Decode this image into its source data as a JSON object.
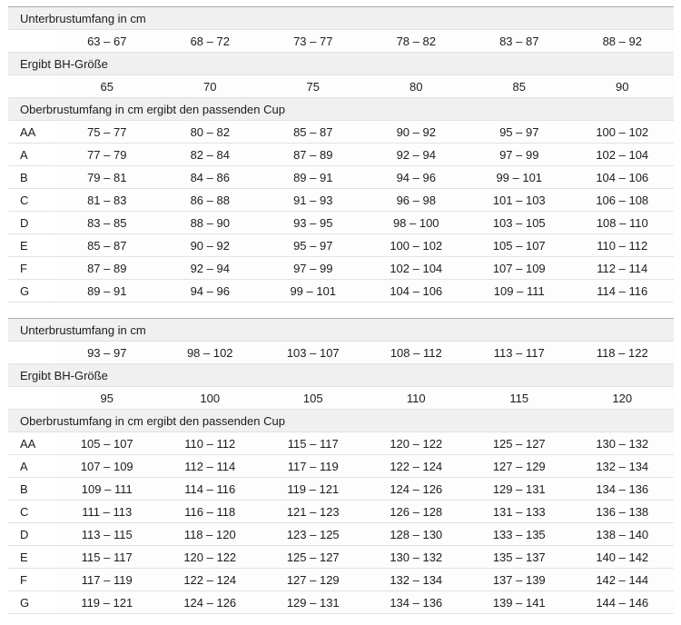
{
  "page": {
    "background": "#ffffff"
  },
  "colors": {
    "header_band_bg": "#f0f0f0",
    "row_separator": "#e2e2e2",
    "table_top_border": "#a9a9a9",
    "text": "#1c1c1c"
  },
  "tables": [
    {
      "underbust_label": "Unterbrustumfang in cm",
      "underbust_ranges": [
        "63 – 67",
        "68 – 72",
        "73 – 77",
        "78 – 82",
        "83 – 87",
        "88 – 92"
      ],
      "band_size_label": "Ergibt BH-Größe",
      "band_sizes": [
        "65",
        "70",
        "75",
        "80",
        "85",
        "90"
      ],
      "cup_label": "Oberbrustumfang in cm ergibt den passenden Cup",
      "cup_rows": [
        {
          "cup": "AA",
          "ranges": [
            "75 – 77",
            "80 – 82",
            "85 – 87",
            "90 – 92",
            "95 – 97",
            "100 – 102"
          ]
        },
        {
          "cup": "A",
          "ranges": [
            "77 – 79",
            "82 – 84",
            "87 – 89",
            "92 – 94",
            "97 – 99",
            "102 – 104"
          ]
        },
        {
          "cup": "B",
          "ranges": [
            "79 – 81",
            "84 – 86",
            "89 – 91",
            "94 – 96",
            "99 – 101",
            "104 – 106"
          ]
        },
        {
          "cup": "C",
          "ranges": [
            "81 – 83",
            "86 – 88",
            "91 – 93",
            "96 – 98",
            "101 – 103",
            "106 – 108"
          ]
        },
        {
          "cup": "D",
          "ranges": [
            "83 – 85",
            "88 – 90",
            "93 – 95",
            "98 – 100",
            "103 – 105",
            "108 – 110"
          ]
        },
        {
          "cup": "E",
          "ranges": [
            "85 – 87",
            "90 – 92",
            "95 – 97",
            "100 – 102",
            "105 – 107",
            "110 – 112"
          ]
        },
        {
          "cup": "F",
          "ranges": [
            "87 – 89",
            "92 – 94",
            "97 – 99",
            "102 – 104",
            "107 – 109",
            "112 – 114"
          ]
        },
        {
          "cup": "G",
          "ranges": [
            "89 – 91",
            "94 – 96",
            "99 – 101",
            "104 – 106",
            "109 – 111",
            "114 – 116"
          ]
        }
      ]
    },
    {
      "underbust_label": "Unterbrustumfang in cm",
      "underbust_ranges": [
        "93 – 97",
        "98 – 102",
        "103 – 107",
        "108 – 112",
        "113 – 117",
        "118 – 122"
      ],
      "band_size_label": "Ergibt BH-Größe",
      "band_sizes": [
        "95",
        "100",
        "105",
        "110",
        "115",
        "120"
      ],
      "cup_label": "Oberbrustumfang in cm ergibt den passenden Cup",
      "cup_rows": [
        {
          "cup": "AA",
          "ranges": [
            "105 – 107",
            "110 – 112",
            "115 – 117",
            "120 – 122",
            "125 – 127",
            "130 – 132"
          ]
        },
        {
          "cup": "A",
          "ranges": [
            "107 – 109",
            "112 – 114",
            "117 – 119",
            "122 – 124",
            "127 – 129",
            "132 – 134"
          ]
        },
        {
          "cup": "B",
          "ranges": [
            "109 – 111",
            "114 – 116",
            "119 – 121",
            "124 – 126",
            "129 – 131",
            "134 – 136"
          ]
        },
        {
          "cup": "C",
          "ranges": [
            "111 – 113",
            "116 – 118",
            "121 – 123",
            "126 – 128",
            "131 – 133",
            "136 – 138"
          ]
        },
        {
          "cup": "D",
          "ranges": [
            "113 – 115",
            "118 – 120",
            "123 – 125",
            "128 – 130",
            "133 – 135",
            "138 – 140"
          ]
        },
        {
          "cup": "E",
          "ranges": [
            "115 – 117",
            "120 – 122",
            "125 – 127",
            "130 – 132",
            "135 – 137",
            "140 – 142"
          ]
        },
        {
          "cup": "F",
          "ranges": [
            "117 – 119",
            "122 – 124",
            "127 – 129",
            "132 – 134",
            "137 – 139",
            "142 – 144"
          ]
        },
        {
          "cup": "G",
          "ranges": [
            "119 – 121",
            "124 – 126",
            "129 – 131",
            "134 – 136",
            "139 – 141",
            "144 – 146"
          ]
        }
      ]
    }
  ]
}
